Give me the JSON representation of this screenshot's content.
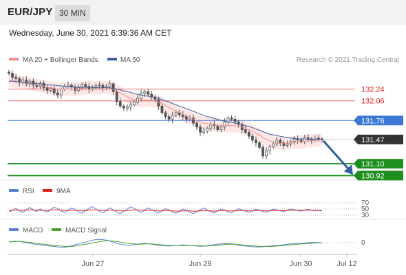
{
  "header": {
    "pair": "EUR/JPY",
    "timeframe": "30 MIN"
  },
  "datetime": "Wednesday, June 30, 2021 6:39:36 AM CET",
  "colors": {
    "ma20_bb": "#f28b8b",
    "ma50": "#3d5f9e",
    "resistance": "#ee6666",
    "pivot": "#3c78d8",
    "support": "#1e8f1e",
    "current": "#333333",
    "arrow": "#2e5f9e",
    "rsi": "#5b7fd4",
    "rsi_9ma": "#e02020",
    "macd": "#5b7fd4",
    "macd_signal": "#4aa02a"
  },
  "chart_data": [
    {
      "type": "candlestick",
      "title": "EUR/JPY 30 MIN",
      "legend": [
        "MA 20 + Bollinger Bands",
        "MA 50"
      ],
      "legend_placement": "top-left",
      "credit": "Research © 2021 Trading Central",
      "x_ticks": [
        "Jun 27",
        "Jun 29",
        "Jun 30",
        "Jul 12"
      ],
      "y_range": [
        130.85,
        132.55
      ],
      "levels": [
        {
          "label": "132.24",
          "value": 132.24,
          "kind": "resistance"
        },
        {
          "label": "132.06",
          "value": 132.06,
          "kind": "resistance"
        },
        {
          "label": "131.76",
          "value": 131.76,
          "kind": "pivot"
        },
        {
          "label": "131.47",
          "value": 131.47,
          "kind": "current"
        },
        {
          "label": "131.10",
          "value": 131.1,
          "kind": "support"
        },
        {
          "label": "130.92",
          "value": 130.92,
          "kind": "support"
        }
      ],
      "close": [
        132.48,
        132.42,
        132.4,
        132.34,
        132.38,
        132.32,
        132.36,
        132.3,
        132.28,
        132.33,
        132.26,
        132.22,
        132.25,
        132.18,
        132.15,
        132.24,
        132.28,
        132.3,
        132.27,
        132.22,
        132.26,
        132.31,
        132.28,
        132.24,
        132.27,
        132.29,
        132.3,
        132.26,
        132.28,
        132.32,
        132.2,
        132.05,
        131.98,
        131.95,
        131.97,
        132.0,
        132.04,
        132.1,
        132.18,
        132.2,
        132.16,
        132.12,
        132.08,
        131.98,
        131.88,
        131.82,
        131.78,
        131.84,
        131.88,
        131.85,
        131.82,
        131.78,
        131.8,
        131.72,
        131.66,
        131.58,
        131.6,
        131.64,
        131.7,
        131.68,
        131.62,
        131.66,
        131.74,
        131.8,
        131.78,
        131.74,
        131.7,
        131.62,
        131.58,
        131.52,
        131.46,
        131.42,
        131.35,
        131.22,
        131.3,
        131.36,
        131.4,
        131.46,
        131.42,
        131.38,
        131.4,
        131.44,
        131.48,
        131.46,
        131.44,
        131.5,
        131.48,
        131.46,
        131.49,
        131.48,
        131.47
      ],
      "ma20": [
        132.38,
        132.37,
        132.36,
        132.35,
        132.34,
        132.33,
        132.32,
        132.31,
        132.3,
        132.29,
        132.28,
        132.27,
        132.26,
        132.25,
        132.24,
        132.24,
        132.24,
        132.24,
        132.24,
        132.24,
        132.25,
        132.25,
        132.26,
        132.26,
        132.26,
        132.26,
        132.26,
        132.26,
        132.26,
        132.26,
        132.24,
        132.21,
        132.18,
        132.15,
        132.12,
        132.1,
        132.08,
        132.07,
        132.07,
        132.07,
        132.07,
        132.07,
        132.06,
        132.04,
        132.02,
        131.99,
        131.96,
        131.93,
        131.91,
        131.88,
        131.85,
        131.83,
        131.8,
        131.78,
        131.76,
        131.74,
        131.72,
        131.71,
        131.7,
        131.69,
        131.68,
        131.68,
        131.68,
        131.68,
        131.68,
        131.68,
        131.67,
        131.66,
        131.64,
        131.62,
        131.6,
        131.57,
        131.54,
        131.5,
        131.47,
        131.45,
        131.43,
        131.42,
        131.41,
        131.41,
        131.41,
        131.42,
        131.42,
        131.43,
        131.43,
        131.44,
        131.45,
        131.45,
        131.46,
        131.46,
        131.47
      ],
      "ma50": [
        132.36,
        132.36,
        132.35,
        132.35,
        132.34,
        132.34,
        132.33,
        132.33,
        132.32,
        132.32,
        132.31,
        132.31,
        132.3,
        132.3,
        132.29,
        132.29,
        132.28,
        132.28,
        132.28,
        132.27,
        132.27,
        132.27,
        132.27,
        132.26,
        132.26,
        132.26,
        132.26,
        132.26,
        132.26,
        132.26,
        132.25,
        132.24,
        132.23,
        132.21,
        132.2,
        132.19,
        132.17,
        132.16,
        132.15,
        132.14,
        132.13,
        132.12,
        132.11,
        132.1,
        132.08,
        132.06,
        132.04,
        132.02,
        132.0,
        131.98,
        131.96,
        131.94,
        131.92,
        131.9,
        131.88,
        131.86,
        131.84,
        131.82,
        131.81,
        131.79,
        131.78,
        131.76,
        131.75,
        131.74,
        131.73,
        131.72,
        131.71,
        131.7,
        131.68,
        131.67,
        131.65,
        131.63,
        131.61,
        131.59,
        131.57,
        131.55,
        131.54,
        131.53,
        131.52,
        131.51,
        131.5,
        131.49,
        131.49,
        131.48,
        131.48,
        131.48,
        131.47,
        131.47,
        131.47,
        131.47,
        131.47
      ],
      "bb_width": 0.1
    },
    {
      "type": "line",
      "legend": [
        "RSI",
        "9MA"
      ],
      "y_ticks": [
        "70",
        "50",
        "30"
      ],
      "rsi": [
        40,
        46,
        52,
        44,
        38,
        48,
        55,
        47,
        42,
        50,
        45,
        40,
        48,
        56,
        51,
        44,
        39,
        47,
        53,
        49,
        41,
        36,
        44,
        52,
        58,
        50,
        43,
        38,
        46,
        54,
        47,
        40,
        35,
        42,
        50,
        57,
        52,
        45,
        39,
        46,
        53,
        48,
        42,
        37,
        45,
        51,
        47,
        41,
        36,
        43,
        50,
        46,
        40,
        35,
        42,
        48,
        53,
        47,
        41,
        37,
        44,
        50,
        46,
        41,
        38,
        45,
        51,
        47,
        43,
        39,
        44,
        49,
        46,
        42,
        40,
        45,
        50,
        47,
        44,
        41,
        46,
        50,
        48,
        45,
        43,
        47,
        49,
        46,
        44,
        45,
        44
      ],
      "ma9": [
        45,
        46,
        47,
        46,
        45,
        46,
        47,
        47,
        46,
        46,
        46,
        45,
        46,
        47,
        47,
        46,
        45,
        45,
        46,
        46,
        45,
        44,
        45,
        46,
        47,
        47,
        46,
        45,
        45,
        46,
        46,
        45,
        44,
        44,
        45,
        46,
        47,
        47,
        46,
        45,
        46,
        46,
        45,
        44,
        44,
        45,
        45,
        44,
        43,
        43,
        44,
        44,
        44,
        43,
        43,
        44,
        45,
        45,
        44,
        43,
        44,
        45,
        45,
        44,
        44,
        44,
        45,
        45,
        45,
        44,
        44,
        45,
        45,
        45,
        44,
        44,
        45,
        45,
        45,
        45,
        45,
        46,
        46,
        46,
        46,
        46,
        46,
        46,
        45,
        45,
        45
      ]
    },
    {
      "type": "line",
      "legend": [
        "MACD",
        "MACD Signal"
      ],
      "y_ticks": [
        "0"
      ],
      "macd": [
        0.02,
        0.04,
        0.05,
        0.04,
        0.02,
        0.0,
        -0.02,
        -0.04,
        -0.06,
        -0.07,
        -0.08,
        -0.1,
        -0.11,
        -0.12,
        -0.14,
        -0.16,
        -0.15,
        -0.13,
        -0.1,
        -0.07,
        -0.04,
        -0.01,
        0.02,
        0.05,
        0.08,
        0.1,
        0.11,
        0.1,
        0.08,
        0.05,
        0.02,
        -0.02,
        -0.05,
        -0.07,
        -0.08,
        -0.08,
        -0.07,
        -0.05,
        -0.03,
        -0.02,
        -0.03,
        -0.05,
        -0.07,
        -0.08,
        -0.09,
        -0.1,
        -0.11,
        -0.1,
        -0.09,
        -0.08,
        -0.07,
        -0.08,
        -0.09,
        -0.1,
        -0.11,
        -0.12,
        -0.11,
        -0.1,
        -0.08,
        -0.06,
        -0.05,
        -0.04,
        -0.03,
        -0.03,
        -0.04,
        -0.06,
        -0.08,
        -0.1,
        -0.11,
        -0.12,
        -0.13,
        -0.14,
        -0.14,
        -0.13,
        -0.12,
        -0.11,
        -0.1,
        -0.09,
        -0.08,
        -0.07,
        -0.05,
        -0.04,
        -0.03,
        -0.02,
        -0.02,
        -0.01,
        0.0,
        0.01,
        0.01,
        0.0,
        0.0
      ],
      "signal": [
        0.03,
        0.03,
        0.04,
        0.04,
        0.03,
        0.02,
        0.01,
        -0.01,
        -0.02,
        -0.04,
        -0.05,
        -0.06,
        -0.08,
        -0.09,
        -0.1,
        -0.11,
        -0.12,
        -0.12,
        -0.12,
        -0.11,
        -0.09,
        -0.07,
        -0.05,
        -0.03,
        -0.01,
        0.01,
        0.03,
        0.05,
        0.06,
        0.06,
        0.05,
        0.04,
        0.02,
        0.0,
        -0.02,
        -0.03,
        -0.04,
        -0.05,
        -0.05,
        -0.04,
        -0.04,
        -0.04,
        -0.05,
        -0.06,
        -0.07,
        -0.08,
        -0.09,
        -0.09,
        -0.09,
        -0.09,
        -0.09,
        -0.09,
        -0.09,
        -0.09,
        -0.1,
        -0.1,
        -0.11,
        -0.11,
        -0.1,
        -0.09,
        -0.08,
        -0.07,
        -0.06,
        -0.05,
        -0.05,
        -0.05,
        -0.06,
        -0.07,
        -0.08,
        -0.09,
        -0.1,
        -0.11,
        -0.12,
        -0.12,
        -0.12,
        -0.12,
        -0.12,
        -0.11,
        -0.1,
        -0.09,
        -0.08,
        -0.07,
        -0.06,
        -0.05,
        -0.04,
        -0.03,
        -0.03,
        -0.02,
        -0.01,
        -0.01,
        0.0
      ]
    }
  ]
}
